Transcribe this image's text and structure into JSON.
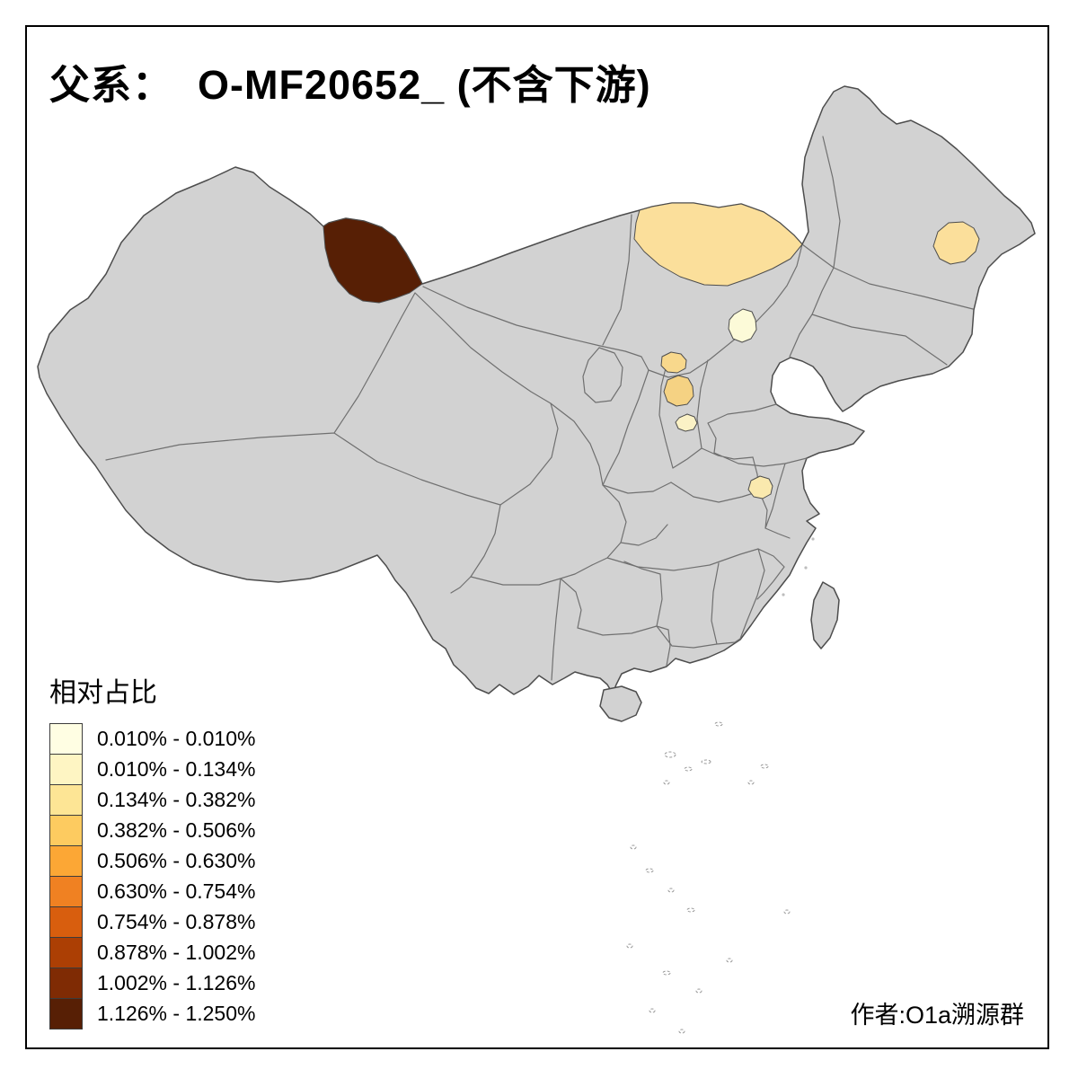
{
  "title": "父系：  O-MF20652_ (不含下游)",
  "author": "作者:O1a溯源群",
  "legend": {
    "title": "相对占比"
  },
  "map_style": {
    "land_fill": "#D2D2D2",
    "outline_stroke": "#4D4D4D",
    "inner_border_stroke": "#707070",
    "sea_mark_stroke": "#9A9A9A"
  },
  "chart_data": {
    "type": "heatmap",
    "subtype": "choropleth-map-of-china",
    "title": "父系：  O-MF20652_ (不含下游)",
    "legend_title": "相对占比",
    "unit": "%",
    "legend_position": "bottom-left",
    "classes": [
      {
        "range": "0.010% - 0.010%",
        "color": "#FFFEE3"
      },
      {
        "range": "0.010% - 0.134%",
        "color": "#FEF5C3"
      },
      {
        "range": "0.134% - 0.382%",
        "color": "#FDE595"
      },
      {
        "range": "0.382% - 0.506%",
        "color": "#FDCB60"
      },
      {
        "range": "0.506% - 0.630%",
        "color": "#FCA735"
      },
      {
        "range": "0.630% - 0.754%",
        "color": "#F08122"
      },
      {
        "range": "0.754% - 0.878%",
        "color": "#D85E0E"
      },
      {
        "range": "0.878% - 1.002%",
        "color": "#AC3F04"
      },
      {
        "range": "1.002% - 1.126%",
        "color": "#7F2B04"
      },
      {
        "range": "1.126% - 1.250%",
        "color": "#571F05"
      }
    ],
    "highlighted_regions": [
      {
        "region": "northern-xinjiang",
        "class": "1.126% - 1.250%",
        "color": "#571F05"
      },
      {
        "region": "central-inner-mongolia",
        "class": "0.134% - 0.382%",
        "color": "#FBDF9B"
      },
      {
        "region": "eastern-heilongjiang",
        "class": "0.134% - 0.382%",
        "color": "#FBDF9B"
      },
      {
        "region": "beijing",
        "class": "0.010% - 0.134%",
        "color": "#FCFAD8"
      },
      {
        "region": "central-shanxi-north",
        "class": "0.134% - 0.382%",
        "color": "#F8D88C"
      },
      {
        "region": "central-shanxi",
        "class": "0.134% - 0.382%",
        "color": "#F5D283"
      },
      {
        "region": "southern-shanxi",
        "class": "0.010% - 0.134%",
        "color": "#FBF2C6"
      },
      {
        "region": "central-anhui",
        "class": "0.010% - 0.134%",
        "color": "#FAE9AE"
      },
      {
        "region": "other-provinces",
        "class": "no-data",
        "color": "#D2D2D2"
      }
    ]
  }
}
